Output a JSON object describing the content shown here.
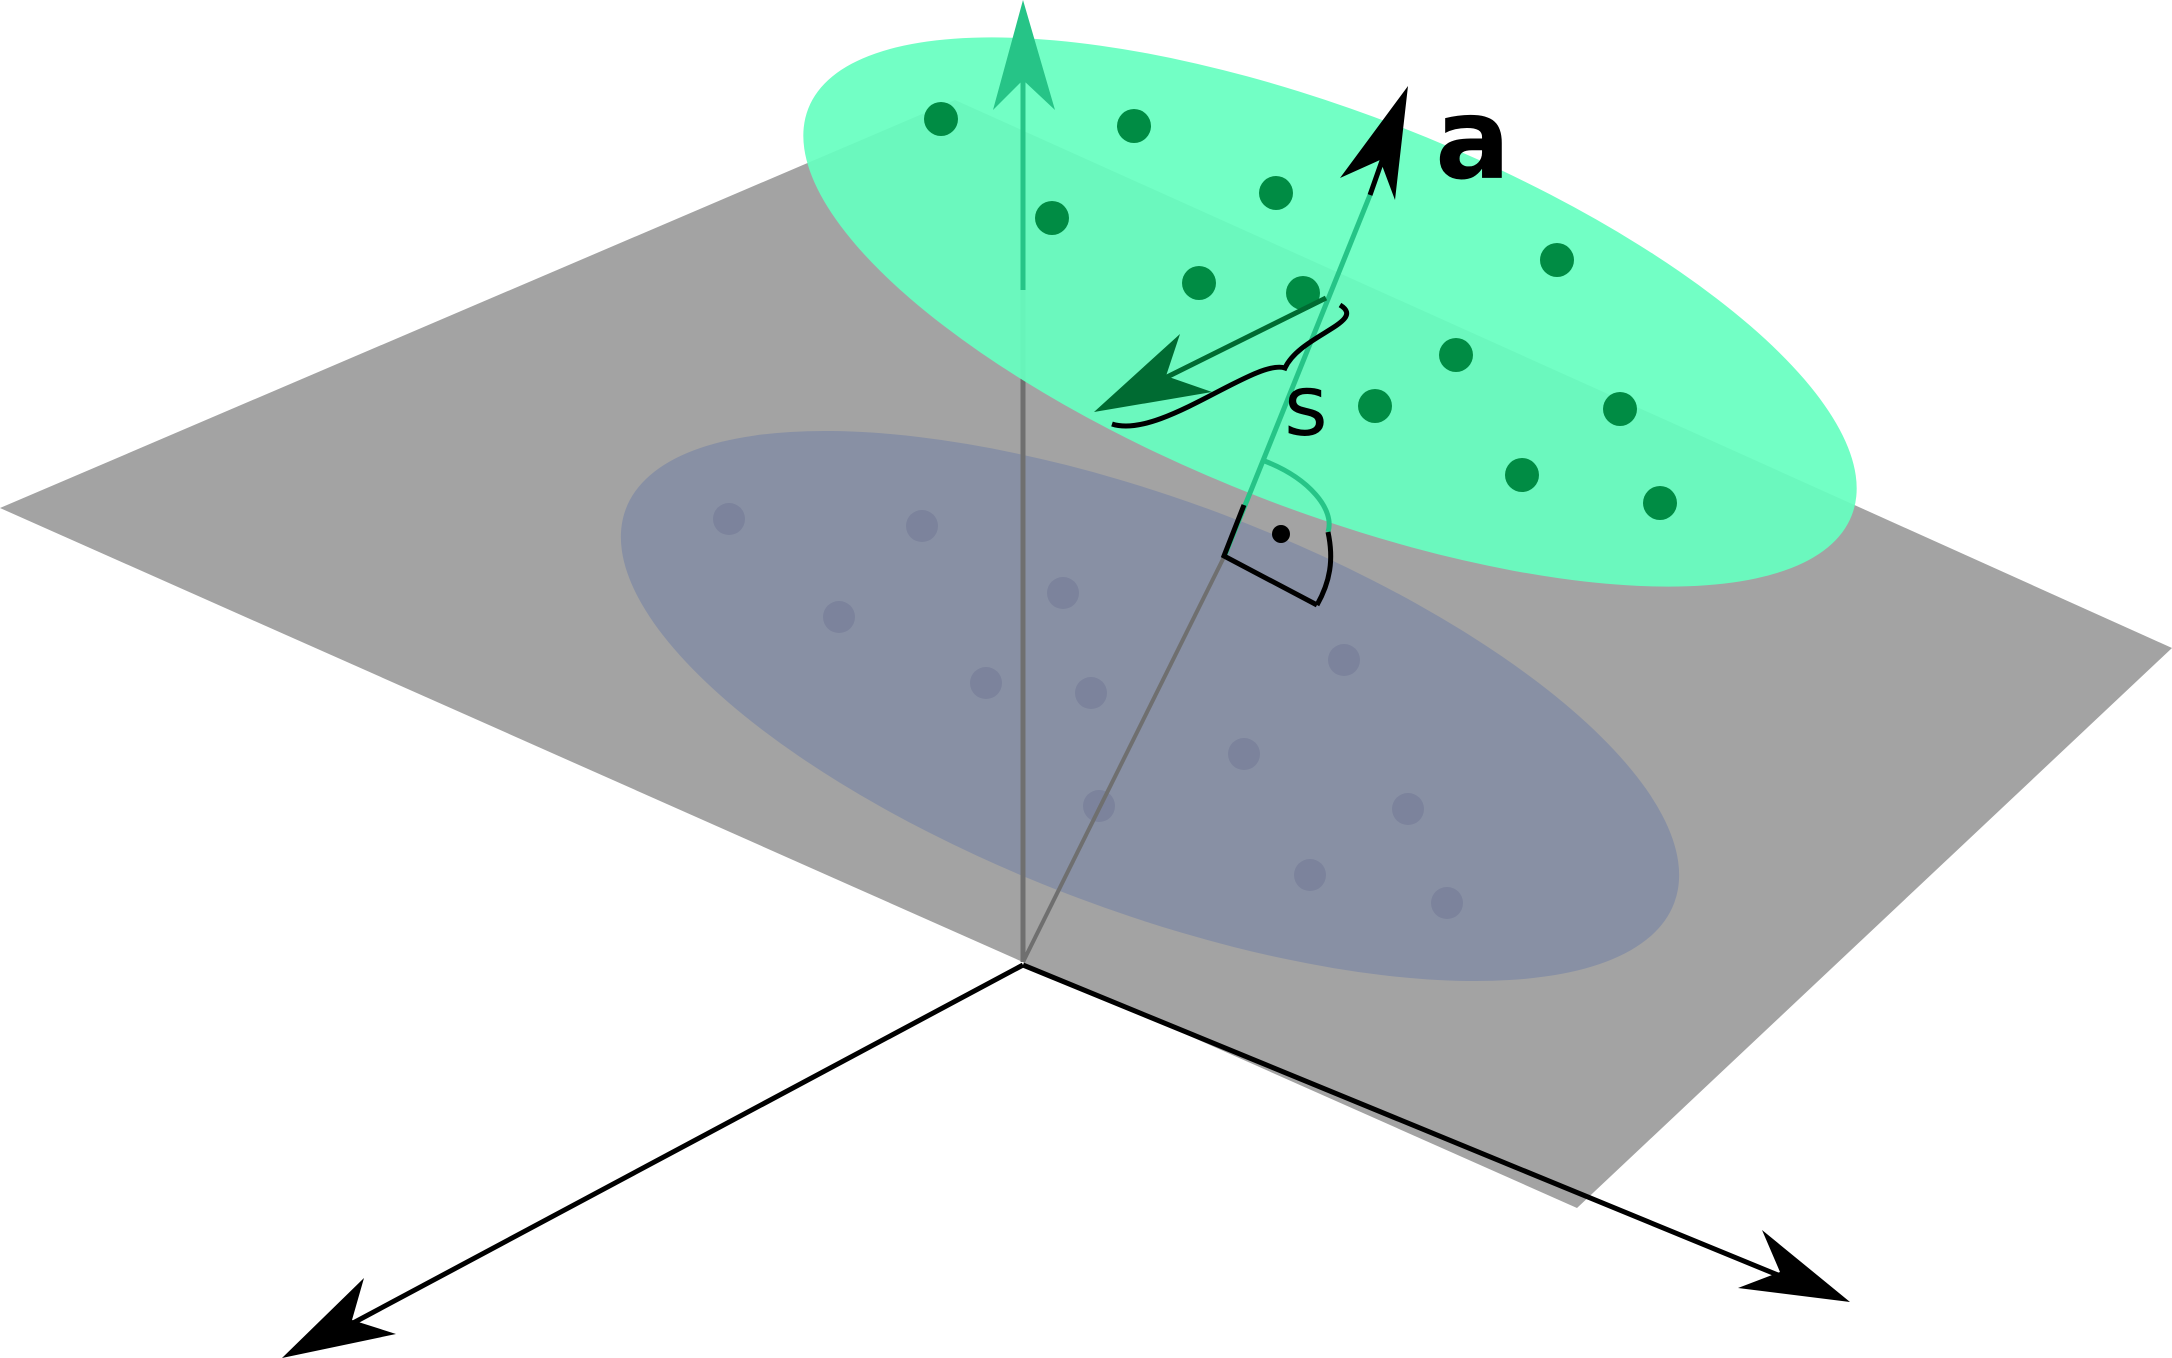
{
  "labels": {
    "vector_a": "a",
    "vector_s": "s"
  },
  "colors": {
    "plane": "#a3a3a3",
    "projection_ellipse": "#8890a4",
    "projection_point": "#7c839c",
    "cluster_ellipse": "#66ffc0",
    "cluster_point": "#008c44",
    "axis": "#000000",
    "green_line": "#26c487",
    "dark_green": "#006b32",
    "background": "#ffffff"
  },
  "cluster_points_count": 13,
  "projected_points_count": 13
}
